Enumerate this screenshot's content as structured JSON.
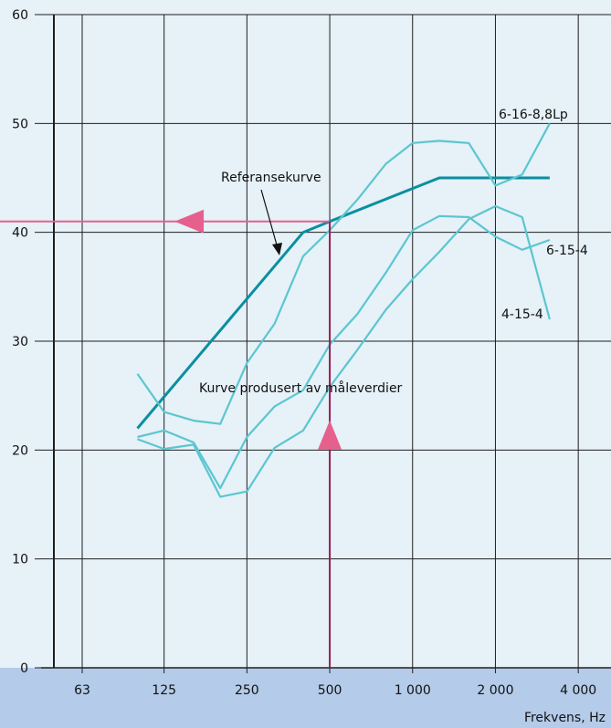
{
  "chart_data": {
    "type": "line",
    "xlabel": "Frekvens, Hz",
    "ylabel": "",
    "ylim": [
      0,
      60
    ],
    "yticks": [
      0,
      10,
      20,
      30,
      40,
      50,
      60
    ],
    "x_log_scale": true,
    "xlim": [
      50,
      5000
    ],
    "xticks": [
      63,
      125,
      250,
      500,
      1000,
      2000,
      4000
    ],
    "xtick_labels": [
      "63",
      "125",
      "250",
      "500",
      "1 000",
      "2 000",
      "4 000"
    ],
    "grid": true,
    "colors": {
      "background": "#b4cbe9",
      "plot_bg": "#e6f1f8",
      "grid": "#1f1f1f",
      "reference": "#0b8fa0",
      "measured": "#5bc6cf",
      "marker_line_h": "#e6608e",
      "marker_line_v": "#9a1d55",
      "arrow": "#e6608e"
    },
    "series": [
      {
        "name": "Referansekurve",
        "x": [
          100,
          400,
          500,
          1250,
          3150
        ],
        "y": [
          22,
          40,
          41,
          45,
          45
        ]
      },
      {
        "name": "6-16-8,8Lp",
        "x": [
          100,
          125,
          160,
          200,
          250,
          315,
          400,
          500,
          630,
          800,
          1000,
          1250,
          1600,
          2000,
          2500,
          3150
        ],
        "y": [
          27,
          23.5,
          22.7,
          22.4,
          28,
          31.6,
          37.8,
          40.2,
          43,
          46.3,
          48.2,
          48.4,
          48.2,
          44.3,
          45.3,
          50
        ]
      },
      {
        "name": "6-15-4",
        "x": [
          100,
          125,
          160,
          200,
          250,
          315,
          400,
          500,
          630,
          800,
          1000,
          1250,
          1600,
          2000,
          2500,
          3150
        ],
        "y": [
          21.2,
          21.8,
          20.7,
          16.5,
          21.2,
          24,
          25.5,
          29.7,
          32.5,
          36.3,
          40.2,
          41.5,
          41.4,
          39.6,
          38.4,
          39.3
        ]
      },
      {
        "name": "4-15-4",
        "x": [
          100,
          125,
          160,
          200,
          250,
          315,
          400,
          500,
          630,
          800,
          1000,
          1250,
          1600,
          2000,
          2500,
          3150
        ],
        "y": [
          21,
          20.1,
          20.5,
          15.7,
          16.2,
          20.2,
          21.8,
          25.8,
          29.2,
          32.9,
          35.7,
          38.2,
          41.2,
          42.4,
          41.4,
          32
        ]
      }
    ],
    "marker": {
      "x": 500,
      "y": 41
    },
    "annotations": {
      "reference_label": "Referansekurve",
      "measured_label": "Kurve produsert av måleverdier",
      "series_labels": [
        "6-16-8,8Lp",
        "6-15-4",
        "4-15-4"
      ]
    }
  }
}
